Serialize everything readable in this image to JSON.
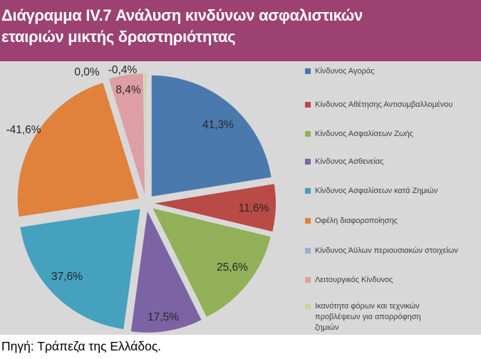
{
  "header": {
    "title_line1": "Διάγραμμα IV.7 Ανάλυση κινδύνων ασφαλιστικών",
    "title_line2": "εταιριών μικτής δραστηριότητας",
    "bg_color": "#9D4172",
    "text_color": "#FFFFFF"
  },
  "footer": {
    "source": "Πηγή: Τράπεζα της Ελλάδος."
  },
  "chart_data": {
    "type": "pie",
    "title": "Διάγραμμα IV.7 Ανάλυση κινδύνων ασφαλιστικών εταιριών μικτής δραστηριότητας",
    "plot_background": "#D8D8D8",
    "legend_position": "right",
    "value_format": "percent, comma decimal separator",
    "angle_rule": "slice angle = |value| / sum(|values|) * 360, clockwise from top",
    "exploded": true,
    "slices": [
      {
        "name": "Κίνδυνος Αγοράς",
        "value": 41.3,
        "label": "41,3%",
        "color": "#4A79AD",
        "label_inside": true
      },
      {
        "name": "Κίνδυνος Αθέτησης Αντισυμβαλλομένου",
        "value": 11.6,
        "label": "11,6%",
        "color": "#B94A45",
        "label_inside": true
      },
      {
        "name": "Κίνδυνος Ασφαλίσεων Ζωής",
        "value": 25.6,
        "label": "25,6%",
        "color": "#92B057",
        "label_inside": true
      },
      {
        "name": "Κίνδυνος Ασθενείας",
        "value": 17.5,
        "label": "17,5%",
        "color": "#7C63A3",
        "label_inside": true
      },
      {
        "name": "Κίνδυνος Ασφαλίσεων κατά Ζημιών",
        "value": 37.6,
        "label": "37,6%",
        "color": "#45A1BE",
        "label_inside": true
      },
      {
        "name": "Οφέλη διαφοροποίησης",
        "value": -41.6,
        "label": "-41,6%",
        "color": "#E0813C",
        "label_inside": false
      },
      {
        "name": "Κίνδυνος Άϋλων περιουσιακών στοιχείων",
        "value": 0.0,
        "label": "0,0%",
        "color": "#95B3D7",
        "label_inside": false
      },
      {
        "name": "Λειτουργικός Κίνδυνος",
        "value": 8.4,
        "label": "8,4%",
        "color": "#DD9EA4",
        "label_inside": true
      },
      {
        "name": "Ικανότητα φόρων και τεχνικών προβλέψεων για απορρόφηση ζημιών",
        "value": -0.4,
        "label": "-0,4%",
        "color": "#C4D79B",
        "label_inside": false
      }
    ]
  }
}
